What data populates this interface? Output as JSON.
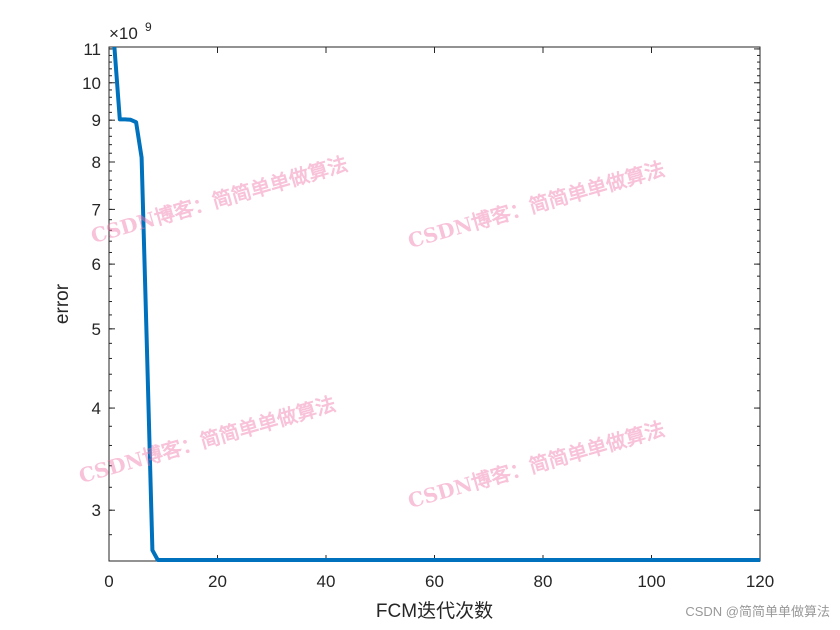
{
  "chart_data": {
    "type": "line",
    "title": "",
    "xlabel": "FCM迭代次数",
    "ylabel": "error",
    "y_exponent_label": "×10",
    "y_exponent": "9",
    "xlim": [
      0,
      120
    ],
    "ylim": [
      2600000000.0,
      11060000000.0
    ],
    "yscale": "log",
    "grid": false,
    "xticks": [
      0,
      20,
      40,
      60,
      80,
      100,
      120
    ],
    "yticks": [
      3,
      4,
      5,
      6,
      7,
      8,
      9,
      10,
      11
    ],
    "line_color": "#0072BD",
    "x_first_points": [
      1,
      2,
      3,
      4,
      5,
      6,
      7,
      8,
      9
    ],
    "y_first_points_e9": [
      11.06,
      9.02,
      9.02,
      9.01,
      8.95,
      8.1,
      4.7,
      2.68,
      2.6
    ],
    "x_end": 120,
    "y_plateau_e9": 2.6
  },
  "watermark": {
    "text": "CSDN博客：简简单单做算法",
    "color": "#f078aa"
  },
  "credit": "CSDN @简简单单做算法"
}
